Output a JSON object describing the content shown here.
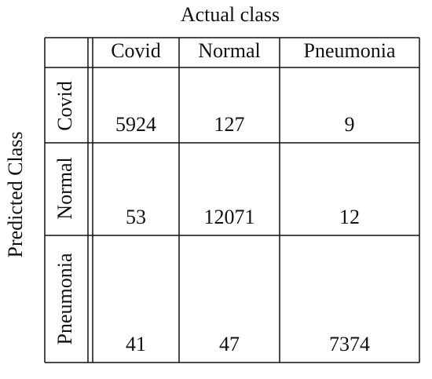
{
  "title": "Actual class",
  "y_label": "Predicted Class",
  "columns": [
    "Covid",
    "Normal",
    "Pneumonia"
  ],
  "rows": [
    {
      "label": "Covid",
      "values": [
        5924,
        127,
        9
      ]
    },
    {
      "label": "Normal",
      "values": [
        53,
        12071,
        12
      ]
    },
    {
      "label": "Pneumonia",
      "values": [
        41,
        47,
        7374
      ]
    }
  ]
}
